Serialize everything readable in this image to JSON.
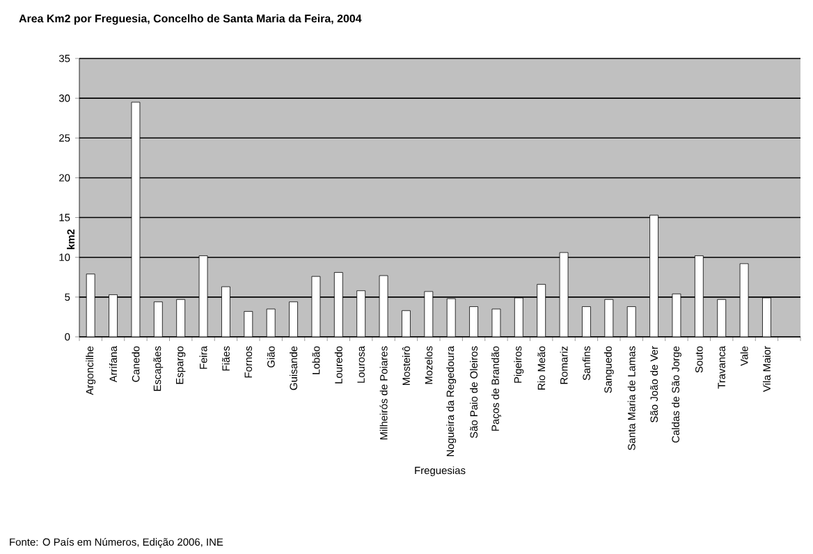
{
  "chart_data": {
    "type": "bar",
    "title": "Area Km2 por Freguesia, Concelho de Santa Maria da Feira, 2004",
    "xlabel": "Freguesias",
    "ylabel": "km2",
    "categories": [
      "Argoncilhe",
      "Arrifana",
      "Canedo",
      "Escapães",
      "Espargo",
      "Feira",
      "Fiães",
      "Fornos",
      "Gião",
      "Guisande",
      "Lobão",
      "Louredo",
      "Lourosa",
      "Milheirós de Poiares",
      "Mosteirô",
      "Mozelos",
      "Nogueira da Regedoura",
      "São Paio de Oleiros",
      "Paços de Brandão",
      "Pigeiros",
      "Rio Meão",
      "Romariz",
      "Sanfins",
      "Sanguedo",
      "Santa Maria de Lamas",
      "São João de Ver",
      "Caldas de São Jorge",
      "Souto",
      "Travanca",
      "Vale",
      "Vila Maior"
    ],
    "values": [
      7.9,
      5.3,
      29.5,
      4.4,
      4.7,
      10.2,
      6.3,
      3.2,
      3.5,
      4.4,
      7.6,
      8.1,
      5.8,
      7.7,
      3.3,
      5.7,
      4.8,
      3.8,
      3.5,
      4.9,
      6.6,
      10.6,
      3.8,
      4.7,
      3.8,
      15.3,
      5.4,
      10.2,
      4.7,
      9.2,
      4.9
    ],
    "color": "#ffffff",
    "ylim": [
      0,
      35
    ],
    "yticks": [
      0,
      5,
      10,
      15,
      20,
      25,
      30,
      35
    ],
    "grid": "y",
    "annotations": [
      "Fonte: O País em Números, Edição 2006, INE"
    ]
  }
}
